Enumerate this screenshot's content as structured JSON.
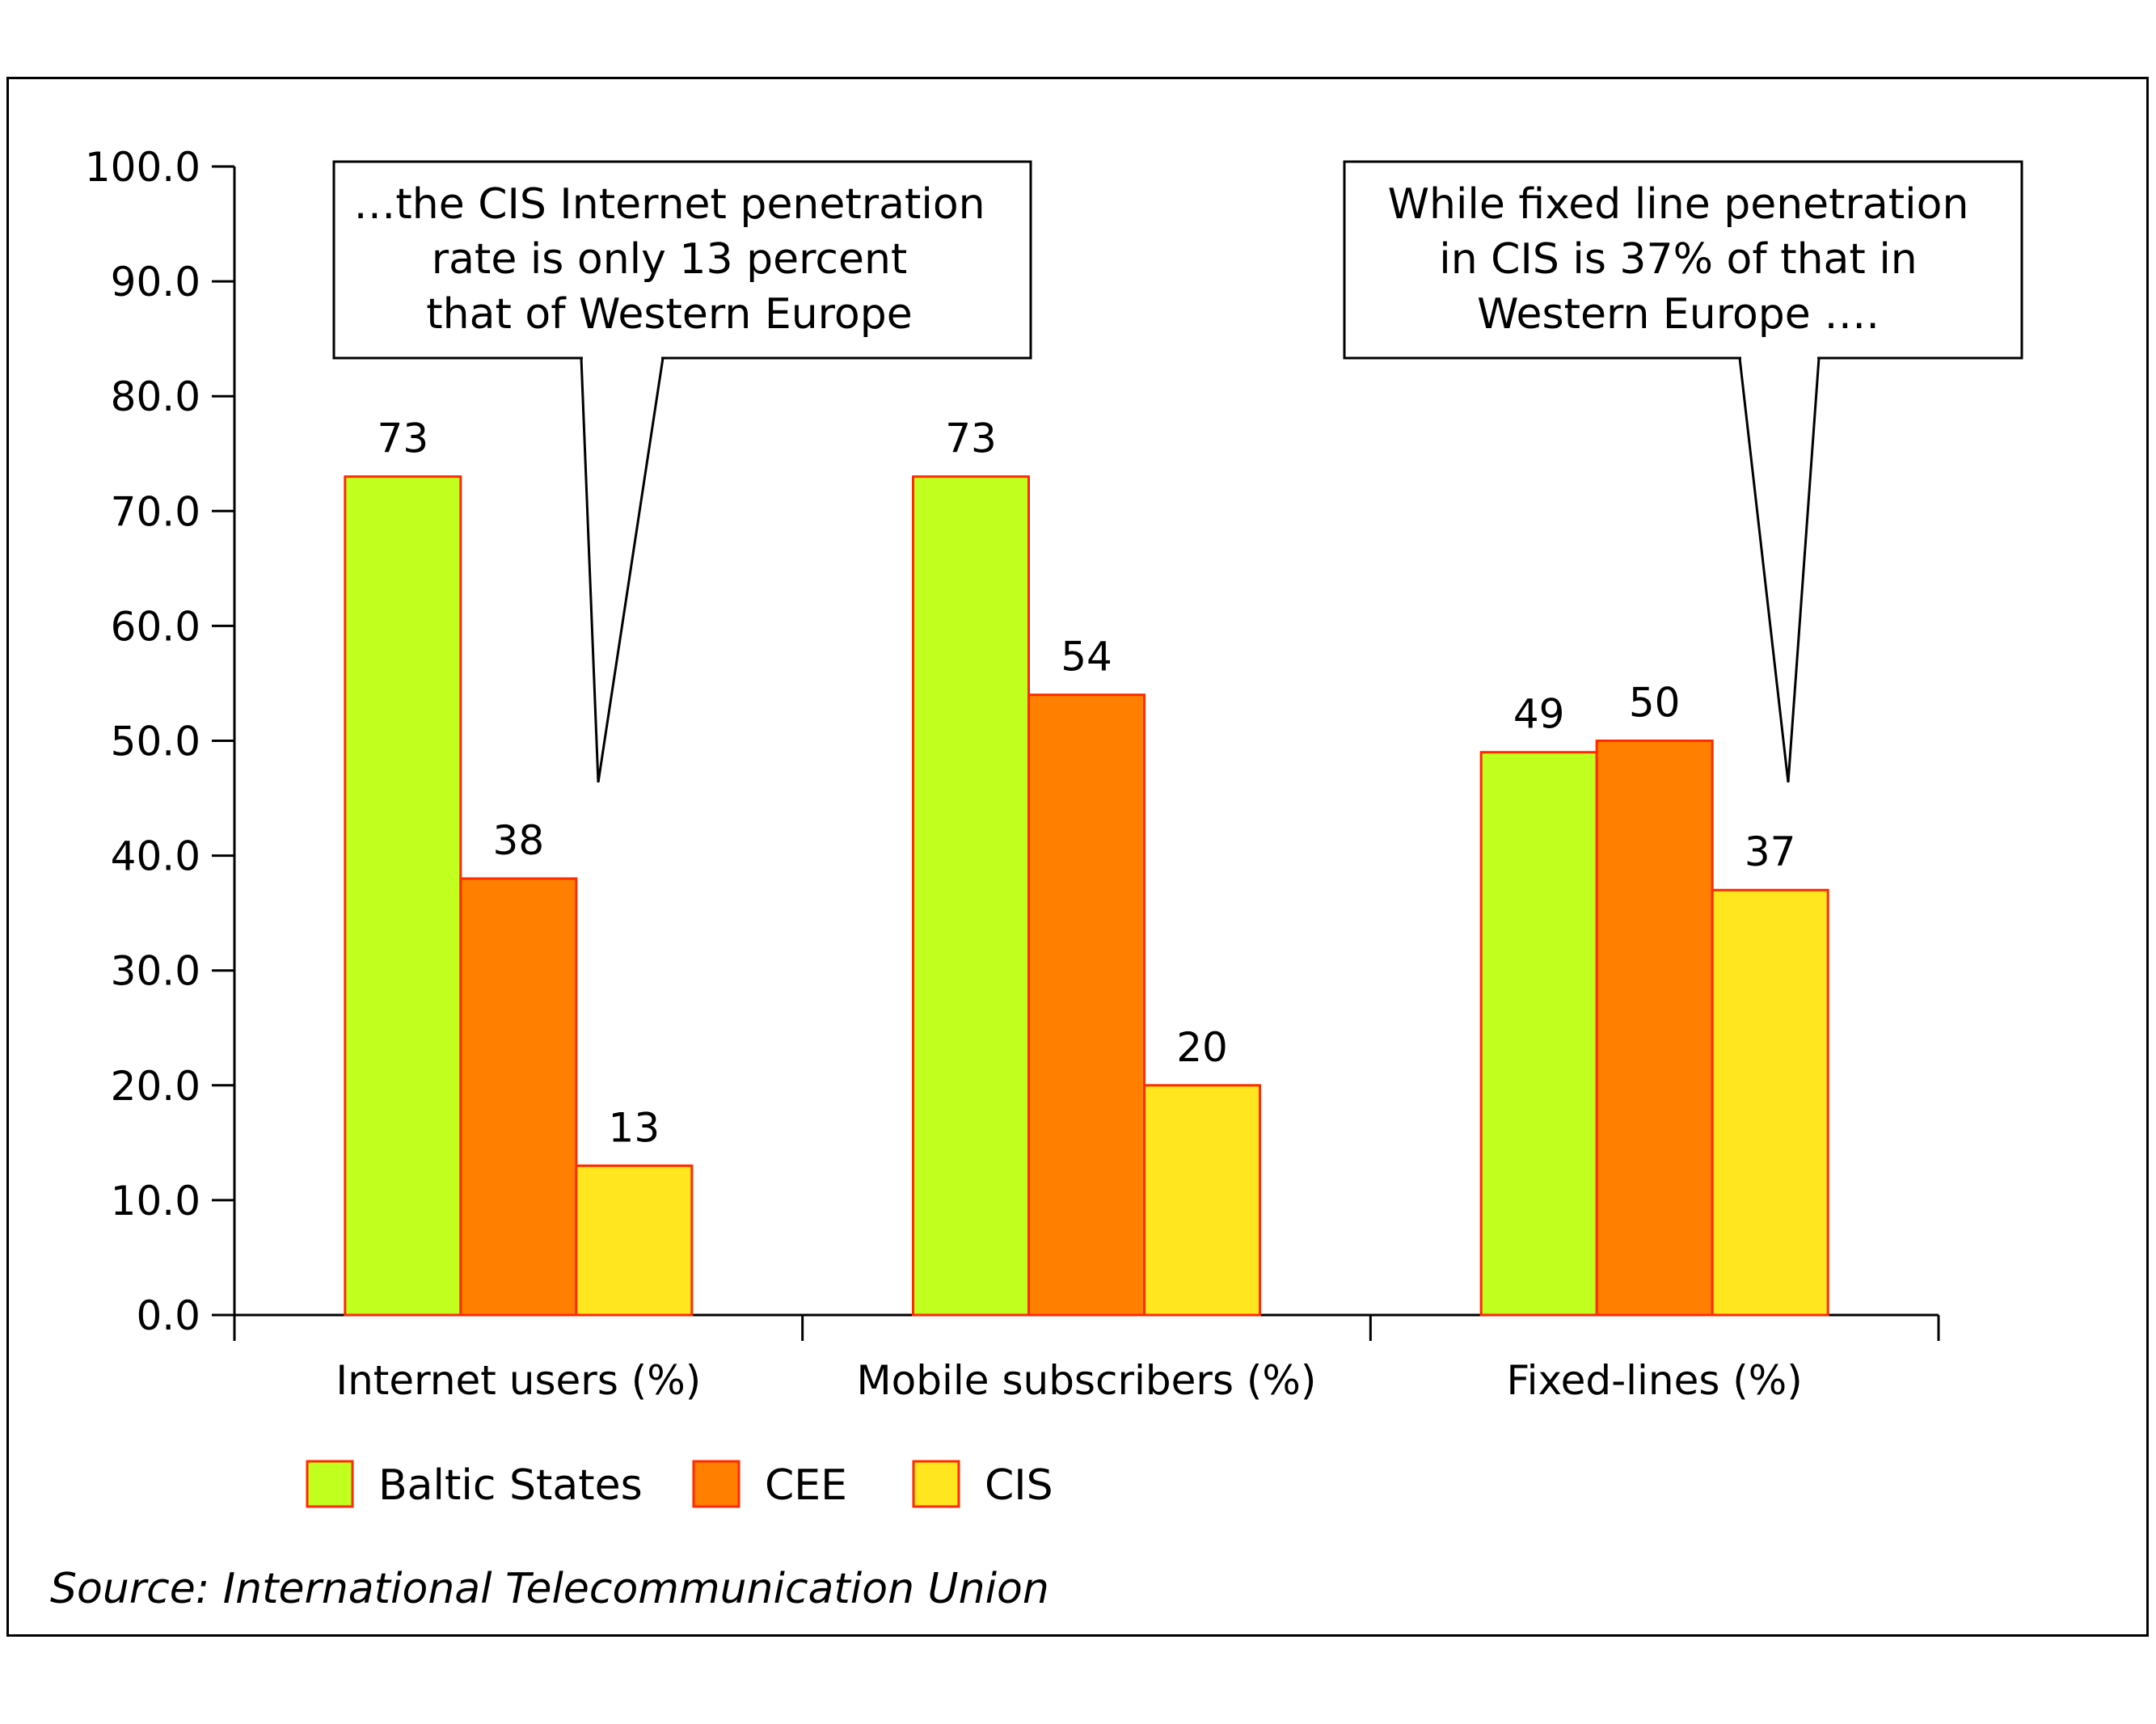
{
  "chart_data": {
    "type": "bar",
    "categories": [
      "Internet users (%)",
      "Mobile subscribers (%)",
      "Fixed-lines (%)"
    ],
    "series": [
      {
        "name": "Baltic States",
        "values": [
          73,
          73,
          49
        ],
        "color": "#c0ff1e"
      },
      {
        "name": "CEE",
        "values": [
          38,
          54,
          50
        ],
        "color": "#ff8000"
      },
      {
        "name": "CIS",
        "values": [
          13,
          20,
          37
        ],
        "color": "#ffe61e"
      }
    ],
    "data_labels": [
      [
        "73",
        "73",
        "49"
      ],
      [
        "38",
        "54",
        "50"
      ],
      [
        "13",
        "20",
        "37"
      ]
    ],
    "ylim": [
      0,
      100
    ],
    "yticks": [
      "0.0",
      "10.0",
      "20.0",
      "30.0",
      "40.0",
      "50.0",
      "60.0",
      "70.0",
      "80.0",
      "90.0",
      "100.0"
    ],
    "bar_border_color": "#ff2a00",
    "legend_position": "bottom-left",
    "grid": false,
    "callouts": [
      {
        "lines": [
          "…the CIS Internet penetration",
          "rate is only 13 percent",
          "that of Western Europe"
        ]
      },
      {
        "lines": [
          "While fixed line penetration",
          "in CIS is 37% of that in",
          "Western Europe …."
        ]
      }
    ],
    "source": "Source: International Telecommunication Union"
  }
}
